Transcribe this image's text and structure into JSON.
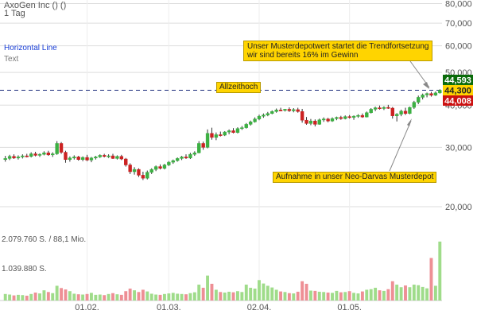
{
  "header": {
    "title": "AxoGen Inc () ()",
    "interval": "1 Tag",
    "tool_label": "Horizontal Line",
    "tool_sublabel": "Text"
  },
  "colors": {
    "up": "#3cb043",
    "down": "#cc2222",
    "vol_up": "#9fdc8a",
    "vol_down": "#ee8f95",
    "accent_blue": "#1a3fd6",
    "annotation_bg": "#ffd400",
    "badge_high": "#0a6b0a",
    "badge_current": "#ffd400",
    "badge_low": "#cc1111",
    "grid": "#dddddd"
  },
  "annotations": {
    "trend": [
      "Unser Musterdepotwert startet die Trendfortsetzung",
      "wir sind bereits 16% im Gewinn"
    ],
    "ath": "Allzeithoch",
    "neo": "Aufnahme in unser Neo-Darvas Musterdepot"
  },
  "chart_data": {
    "type": "candlestick",
    "y_axis": {
      "scale": "log",
      "range": [
        17000,
        82000
      ],
      "ticks": [
        20000,
        30000,
        40000,
        50000,
        60000,
        70000,
        80000
      ],
      "tick_labels": [
        "20,000",
        "30,000",
        "40,000",
        "50,000",
        "60,000",
        "70,000",
        "80,000"
      ]
    },
    "x_ticks": [
      {
        "date": "2018-02-01",
        "label": "01.02."
      },
      {
        "date": "2018-03-01",
        "label": "01.03."
      },
      {
        "date": "2018-04-02",
        "label": "02.04."
      },
      {
        "date": "2018-05-01",
        "label": "01.05."
      }
    ],
    "reference_line": {
      "label": "Allzeithoch",
      "value": 44300
    },
    "price_badges": [
      {
        "label": "44,593",
        "value": 44593,
        "role": "high"
      },
      {
        "label": "44,300",
        "value": 44300,
        "role": "current"
      },
      {
        "label": "44,008",
        "value": 44008,
        "role": "low"
      }
    ],
    "volume_axis": {
      "range": [
        0,
        2300000
      ],
      "labels": [
        {
          "text": "2.079.760 S. / 88,1 Mio.",
          "value": 2079760
        },
        {
          "text": "1.039.880 S.",
          "value": 1039880
        }
      ]
    },
    "candles": [
      {
        "date": "2018-01-04",
        "o": 27600,
        "h": 28300,
        "l": 27200,
        "c": 27800,
        "v": 230000
      },
      {
        "date": "2018-01-05",
        "o": 27800,
        "h": 28500,
        "l": 27500,
        "c": 28200,
        "v": 210000
      },
      {
        "date": "2018-01-08",
        "o": 28200,
        "h": 28600,
        "l": 27700,
        "c": 27900,
        "v": 180000
      },
      {
        "date": "2018-01-09",
        "o": 27900,
        "h": 28400,
        "l": 27600,
        "c": 28100,
        "v": 200000
      },
      {
        "date": "2018-01-10",
        "o": 28100,
        "h": 28600,
        "l": 27800,
        "c": 28300,
        "v": 190000
      },
      {
        "date": "2018-01-11",
        "o": 28300,
        "h": 28700,
        "l": 28000,
        "c": 28200,
        "v": 170000
      },
      {
        "date": "2018-01-12",
        "o": 28200,
        "h": 29000,
        "l": 28000,
        "c": 28700,
        "v": 230000
      },
      {
        "date": "2018-01-16",
        "o": 28700,
        "h": 29100,
        "l": 28200,
        "c": 28400,
        "v": 280000
      },
      {
        "date": "2018-01-17",
        "o": 28400,
        "h": 28800,
        "l": 28100,
        "c": 28600,
        "v": 250000
      },
      {
        "date": "2018-01-18",
        "o": 28600,
        "h": 29200,
        "l": 28400,
        "c": 28900,
        "v": 360000
      },
      {
        "date": "2018-01-19",
        "o": 28900,
        "h": 29300,
        "l": 28300,
        "c": 28500,
        "v": 300000
      },
      {
        "date": "2018-01-22",
        "o": 28500,
        "h": 29000,
        "l": 28100,
        "c": 28700,
        "v": 260000
      },
      {
        "date": "2018-01-23",
        "o": 28700,
        "h": 31300,
        "l": 28500,
        "c": 30800,
        "v": 520000
      },
      {
        "date": "2018-01-24",
        "o": 30800,
        "h": 31100,
        "l": 28700,
        "c": 29000,
        "v": 440000
      },
      {
        "date": "2018-01-25",
        "o": 29000,
        "h": 29300,
        "l": 27000,
        "c": 27600,
        "v": 390000
      },
      {
        "date": "2018-01-26",
        "o": 27600,
        "h": 28200,
        "l": 27200,
        "c": 27900,
        "v": 330000
      },
      {
        "date": "2018-01-29",
        "o": 27900,
        "h": 28400,
        "l": 27600,
        "c": 28100,
        "v": 240000
      },
      {
        "date": "2018-01-30",
        "o": 28100,
        "h": 28300,
        "l": 27400,
        "c": 27600,
        "v": 220000
      },
      {
        "date": "2018-01-31",
        "o": 27600,
        "h": 28200,
        "l": 27300,
        "c": 28000,
        "v": 210000
      },
      {
        "date": "2018-02-01",
        "o": 28000,
        "h": 28500,
        "l": 27300,
        "c": 27500,
        "v": 230000
      },
      {
        "date": "2018-02-02",
        "o": 27500,
        "h": 28100,
        "l": 27100,
        "c": 27900,
        "v": 270000
      },
      {
        "date": "2018-02-05",
        "o": 27900,
        "h": 28300,
        "l": 27600,
        "c": 28100,
        "v": 200000
      },
      {
        "date": "2018-02-06",
        "o": 28100,
        "h": 28600,
        "l": 27900,
        "c": 28400,
        "v": 210000
      },
      {
        "date": "2018-02-07",
        "o": 28400,
        "h": 28700,
        "l": 28000,
        "c": 28200,
        "v": 190000
      },
      {
        "date": "2018-02-08",
        "o": 28200,
        "h": 28600,
        "l": 27900,
        "c": 28300,
        "v": 230000
      },
      {
        "date": "2018-02-09",
        "o": 28300,
        "h": 28700,
        "l": 27700,
        "c": 27800,
        "v": 260000
      },
      {
        "date": "2018-02-12",
        "o": 27800,
        "h": 28400,
        "l": 27600,
        "c": 28200,
        "v": 220000
      },
      {
        "date": "2018-02-13",
        "o": 28200,
        "h": 28500,
        "l": 27500,
        "c": 27700,
        "v": 200000
      },
      {
        "date": "2018-02-14",
        "o": 27700,
        "h": 27900,
        "l": 26300,
        "c": 26600,
        "v": 330000
      },
      {
        "date": "2018-02-15",
        "o": 26600,
        "h": 26900,
        "l": 25000,
        "c": 25400,
        "v": 420000
      },
      {
        "date": "2018-02-16",
        "o": 25400,
        "h": 26200,
        "l": 24900,
        "c": 25800,
        "v": 360000
      },
      {
        "date": "2018-02-20",
        "o": 25800,
        "h": 26000,
        "l": 24500,
        "c": 24800,
        "v": 300000
      },
      {
        "date": "2018-02-21",
        "o": 24800,
        "h": 25400,
        "l": 24000,
        "c": 24300,
        "v": 380000
      },
      {
        "date": "2018-02-22",
        "o": 24300,
        "h": 25600,
        "l": 24100,
        "c": 25300,
        "v": 320000
      },
      {
        "date": "2018-02-23",
        "o": 25300,
        "h": 26000,
        "l": 25000,
        "c": 25800,
        "v": 240000
      },
      {
        "date": "2018-02-26",
        "o": 25800,
        "h": 26500,
        "l": 25500,
        "c": 26300,
        "v": 210000
      },
      {
        "date": "2018-02-27",
        "o": 26300,
        "h": 26700,
        "l": 25800,
        "c": 26000,
        "v": 200000
      },
      {
        "date": "2018-02-28",
        "o": 26000,
        "h": 26800,
        "l": 25800,
        "c": 26600,
        "v": 230000
      },
      {
        "date": "2018-03-01",
        "o": 26600,
        "h": 27300,
        "l": 26400,
        "c": 27100,
        "v": 250000
      },
      {
        "date": "2018-03-02",
        "o": 27100,
        "h": 27600,
        "l": 26800,
        "c": 27400,
        "v": 270000
      },
      {
        "date": "2018-03-05",
        "o": 27400,
        "h": 28000,
        "l": 27200,
        "c": 27800,
        "v": 240000
      },
      {
        "date": "2018-03-06",
        "o": 27800,
        "h": 28300,
        "l": 27500,
        "c": 28100,
        "v": 230000
      },
      {
        "date": "2018-03-07",
        "o": 28100,
        "h": 28600,
        "l": 27700,
        "c": 27900,
        "v": 220000
      },
      {
        "date": "2018-03-08",
        "o": 27900,
        "h": 28900,
        "l": 27700,
        "c": 28600,
        "v": 260000
      },
      {
        "date": "2018-03-09",
        "o": 28600,
        "h": 29200,
        "l": 28300,
        "c": 28900,
        "v": 290000
      },
      {
        "date": "2018-03-12",
        "o": 28900,
        "h": 31300,
        "l": 28800,
        "c": 30800,
        "v": 560000
      },
      {
        "date": "2018-03-13",
        "o": 30800,
        "h": 31200,
        "l": 29500,
        "c": 30000,
        "v": 450000
      },
      {
        "date": "2018-03-14",
        "o": 30000,
        "h": 33900,
        "l": 29800,
        "c": 33000,
        "v": 880000
      },
      {
        "date": "2018-03-15",
        "o": 33000,
        "h": 34300,
        "l": 31600,
        "c": 32100,
        "v": 590000
      },
      {
        "date": "2018-03-16",
        "o": 32100,
        "h": 33200,
        "l": 31500,
        "c": 32700,
        "v": 380000
      },
      {
        "date": "2018-03-19",
        "o": 32700,
        "h": 33400,
        "l": 32300,
        "c": 32600,
        "v": 300000
      },
      {
        "date": "2018-03-20",
        "o": 32600,
        "h": 33500,
        "l": 32400,
        "c": 33300,
        "v": 280000
      },
      {
        "date": "2018-03-21",
        "o": 33300,
        "h": 33900,
        "l": 32800,
        "c": 33600,
        "v": 310000
      },
      {
        "date": "2018-03-22",
        "o": 33600,
        "h": 34200,
        "l": 33000,
        "c": 33200,
        "v": 290000
      },
      {
        "date": "2018-03-23",
        "o": 33200,
        "h": 34400,
        "l": 33000,
        "c": 34100,
        "v": 330000
      },
      {
        "date": "2018-03-26",
        "o": 34100,
        "h": 34700,
        "l": 33800,
        "c": 34300,
        "v": 300000
      },
      {
        "date": "2018-03-27",
        "o": 34300,
        "h": 35400,
        "l": 34100,
        "c": 35100,
        "v": 560000
      },
      {
        "date": "2018-03-28",
        "o": 35100,
        "h": 36000,
        "l": 34800,
        "c": 35700,
        "v": 450000
      },
      {
        "date": "2018-03-29",
        "o": 35700,
        "h": 36800,
        "l": 35500,
        "c": 36400,
        "v": 420000
      },
      {
        "date": "2018-04-02",
        "o": 36400,
        "h": 37500,
        "l": 36100,
        "c": 37100,
        "v": 720000
      },
      {
        "date": "2018-04-03",
        "o": 37100,
        "h": 37800,
        "l": 36700,
        "c": 37400,
        "v": 600000
      },
      {
        "date": "2018-04-04",
        "o": 37400,
        "h": 38200,
        "l": 37100,
        "c": 37800,
        "v": 520000
      },
      {
        "date": "2018-04-05",
        "o": 37800,
        "h": 38600,
        "l": 37600,
        "c": 38300,
        "v": 460000
      },
      {
        "date": "2018-04-06",
        "o": 38300,
        "h": 39100,
        "l": 38000,
        "c": 38700,
        "v": 380000
      },
      {
        "date": "2018-04-09",
        "o": 38700,
        "h": 39300,
        "l": 38400,
        "c": 38600,
        "v": 320000
      },
      {
        "date": "2018-04-10",
        "o": 38600,
        "h": 39000,
        "l": 38300,
        "c": 38900,
        "v": 300000
      },
      {
        "date": "2018-04-11",
        "o": 38900,
        "h": 39400,
        "l": 38200,
        "c": 38500,
        "v": 260000
      },
      {
        "date": "2018-04-12",
        "o": 38500,
        "h": 39200,
        "l": 38100,
        "c": 38800,
        "v": 250000
      },
      {
        "date": "2018-04-13",
        "o": 38800,
        "h": 39300,
        "l": 38000,
        "c": 38300,
        "v": 310000
      },
      {
        "date": "2018-04-16",
        "o": 38300,
        "h": 39000,
        "l": 35500,
        "c": 36100,
        "v": 680000
      },
      {
        "date": "2018-04-17",
        "o": 36100,
        "h": 36900,
        "l": 35000,
        "c": 35300,
        "v": 590000
      },
      {
        "date": "2018-04-18",
        "o": 35300,
        "h": 36400,
        "l": 34900,
        "c": 35900,
        "v": 350000
      },
      {
        "date": "2018-04-19",
        "o": 35900,
        "h": 36300,
        "l": 34600,
        "c": 35100,
        "v": 340000
      },
      {
        "date": "2018-04-20",
        "o": 35100,
        "h": 36500,
        "l": 35000,
        "c": 36200,
        "v": 310000
      },
      {
        "date": "2018-04-23",
        "o": 36200,
        "h": 36800,
        "l": 35700,
        "c": 36400,
        "v": 300000
      },
      {
        "date": "2018-04-24",
        "o": 36400,
        "h": 36700,
        "l": 35600,
        "c": 35900,
        "v": 280000
      },
      {
        "date": "2018-04-25",
        "o": 35900,
        "h": 36800,
        "l": 35700,
        "c": 36500,
        "v": 270000
      },
      {
        "date": "2018-04-26",
        "o": 36500,
        "h": 37000,
        "l": 36100,
        "c": 36800,
        "v": 340000
      },
      {
        "date": "2018-04-27",
        "o": 36800,
        "h": 37200,
        "l": 36200,
        "c": 36500,
        "v": 290000
      },
      {
        "date": "2018-04-30",
        "o": 36500,
        "h": 37300,
        "l": 36300,
        "c": 37000,
        "v": 300000
      },
      {
        "date": "2018-05-01",
        "o": 37000,
        "h": 37400,
        "l": 36500,
        "c": 36800,
        "v": 330000
      },
      {
        "date": "2018-05-02",
        "o": 36800,
        "h": 37300,
        "l": 36200,
        "c": 37100,
        "v": 270000
      },
      {
        "date": "2018-05-03",
        "o": 37100,
        "h": 37600,
        "l": 36700,
        "c": 37300,
        "v": 250000
      },
      {
        "date": "2018-05-04",
        "o": 37300,
        "h": 37800,
        "l": 36700,
        "c": 36900,
        "v": 320000
      },
      {
        "date": "2018-05-07",
        "o": 36900,
        "h": 38300,
        "l": 36800,
        "c": 38000,
        "v": 380000
      },
      {
        "date": "2018-05-08",
        "o": 38000,
        "h": 39200,
        "l": 37800,
        "c": 38900,
        "v": 400000
      },
      {
        "date": "2018-05-09",
        "o": 38900,
        "h": 39600,
        "l": 38400,
        "c": 39300,
        "v": 450000
      },
      {
        "date": "2018-05-10",
        "o": 39300,
        "h": 39900,
        "l": 38800,
        "c": 39100,
        "v": 360000
      },
      {
        "date": "2018-05-11",
        "o": 39100,
        "h": 39700,
        "l": 38700,
        "c": 39400,
        "v": 340000
      },
      {
        "date": "2018-05-14",
        "o": 39400,
        "h": 40100,
        "l": 39000,
        "c": 39200,
        "v": 400000
      },
      {
        "date": "2018-05-15",
        "o": 39200,
        "h": 39500,
        "l": 36500,
        "c": 37200,
        "v": 680000
      },
      {
        "date": "2018-05-16",
        "o": 37200,
        "h": 37900,
        "l": 35800,
        "c": 37600,
        "v": 560000
      },
      {
        "date": "2018-05-17",
        "o": 37600,
        "h": 38800,
        "l": 37100,
        "c": 38400,
        "v": 470000
      },
      {
        "date": "2018-05-18",
        "o": 38400,
        "h": 39300,
        "l": 37400,
        "c": 37800,
        "v": 530000
      },
      {
        "date": "2018-05-21",
        "o": 37800,
        "h": 39600,
        "l": 37600,
        "c": 39400,
        "v": 470000
      },
      {
        "date": "2018-05-22",
        "o": 39400,
        "h": 41200,
        "l": 39000,
        "c": 40800,
        "v": 560000
      },
      {
        "date": "2018-05-23",
        "o": 40800,
        "h": 42700,
        "l": 40300,
        "c": 42200,
        "v": 540000
      },
      {
        "date": "2018-05-24",
        "o": 42200,
        "h": 43300,
        "l": 41600,
        "c": 42900,
        "v": 480000
      },
      {
        "date": "2018-05-25",
        "o": 42900,
        "h": 43600,
        "l": 42200,
        "c": 43300,
        "v": 430000
      },
      {
        "date": "2018-05-29",
        "o": 43300,
        "h": 43800,
        "l": 42400,
        "c": 42800,
        "v": 1500000
      },
      {
        "date": "2018-05-30",
        "o": 42800,
        "h": 43900,
        "l": 42600,
        "c": 43500,
        "v": 520000
      },
      {
        "date": "2018-05-31",
        "o": 43500,
        "h": 44593,
        "l": 43300,
        "c": 44300,
        "v": 2079760
      }
    ]
  }
}
